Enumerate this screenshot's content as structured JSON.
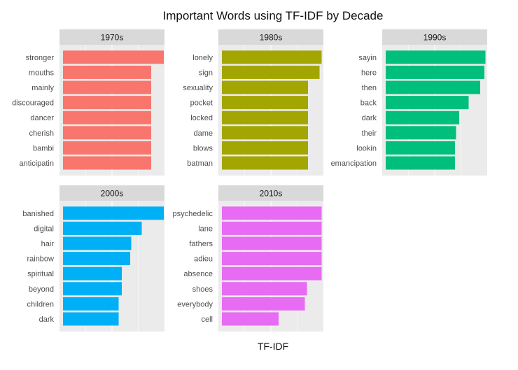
{
  "chart_data": {
    "type": "bar",
    "orientation": "horizontal",
    "title": "Important Words using TF-IDF by Decade",
    "xlabel": "TF-IDF",
    "ylabel": "",
    "facets": [
      {
        "name": "1970s",
        "color": "#F8766D",
        "categories": [
          "stronger",
          "mouths",
          "mainly",
          "discouraged",
          "dancer",
          "cherish",
          "bambi",
          "anticipatin"
        ],
        "values": [
          0.98,
          0.86,
          0.86,
          0.86,
          0.86,
          0.86,
          0.86,
          0.86
        ]
      },
      {
        "name": "1980s",
        "color": "#A3A500",
        "categories": [
          "lonely",
          "sign",
          "sexuality",
          "pocket",
          "locked",
          "dame",
          "blows",
          "batman"
        ],
        "values": [
          0.97,
          0.95,
          0.84,
          0.84,
          0.84,
          0.84,
          0.84,
          0.84
        ]
      },
      {
        "name": "1990s",
        "color": "#00BF7D",
        "categories": [
          "sayin",
          "here",
          "then",
          "back",
          "dark",
          "their",
          "lookin",
          "emancipation"
        ],
        "values": [
          0.97,
          0.96,
          0.92,
          0.81,
          0.72,
          0.69,
          0.68,
          0.68
        ]
      },
      {
        "name": "2000s",
        "color": "#00B0F6",
        "categories": [
          "banished",
          "digital",
          "hair",
          "rainbow",
          "spiritual",
          "beyond",
          "children",
          "dark"
        ],
        "values": [
          0.98,
          0.77,
          0.67,
          0.66,
          0.58,
          0.58,
          0.55,
          0.55
        ]
      },
      {
        "name": "2010s",
        "color": "#E76BF3",
        "categories": [
          "psychedelic",
          "lane",
          "fathers",
          "adieu",
          "absence",
          "shoes",
          "everybody",
          "cell"
        ],
        "values": [
          0.97,
          0.97,
          0.97,
          0.97,
          0.97,
          0.83,
          0.81,
          0.56
        ]
      }
    ],
    "xlim": [
      0,
      1
    ],
    "grid": true,
    "legend": "none"
  }
}
